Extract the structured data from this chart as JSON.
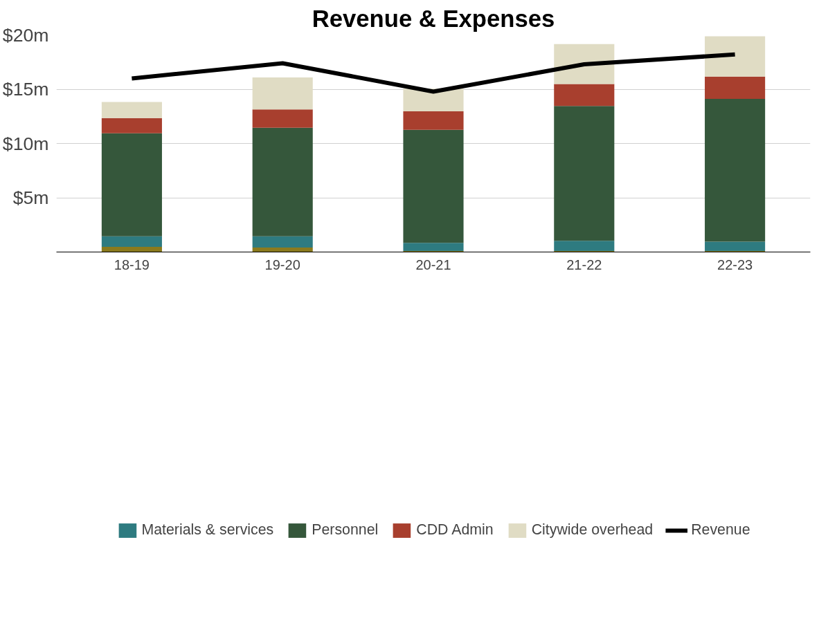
{
  "chart_data": {
    "type": "bar",
    "title": "Revenue & Expenses",
    "stacked": true,
    "categories": [
      "18-19",
      "19-20",
      "20-21",
      "21-22",
      "22-23"
    ],
    "series": [
      {
        "color": "#8a7a1e",
        "values": [
          0.47,
          0.42,
          0.1,
          0.1,
          0.1
        ]
      },
      {
        "name": "Materials & services",
        "color": "#2e7b80",
        "values": [
          0.98,
          1.03,
          0.74,
          0.93,
          0.86
        ]
      },
      {
        "name": "Personnel",
        "color": "#35573b",
        "values": [
          9.49,
          10.0,
          10.42,
          12.42,
          13.15
        ]
      },
      {
        "name": "CDD Admin",
        "color": "#a83f2e",
        "values": [
          1.4,
          1.68,
          1.7,
          2.02,
          2.05
        ]
      },
      {
        "name": "Citywide overhead",
        "color": "#e0dcc4",
        "values": [
          1.48,
          2.95,
          2.09,
          3.69,
          3.72
        ]
      },
      {
        "name": "Revenue",
        "type": "line",
        "color": "#000000",
        "values": [
          15.99,
          17.39,
          14.78,
          17.29,
          18.2
        ]
      }
    ],
    "ylim": [
      0,
      20
    ],
    "yticks": [
      {
        "value": 5,
        "label": "$5m"
      },
      {
        "value": 10,
        "label": "$10m"
      },
      {
        "value": 15,
        "label": "$15m"
      },
      {
        "value": 20,
        "label": "$20m"
      }
    ],
    "grid": "y",
    "legend": "bottom"
  }
}
